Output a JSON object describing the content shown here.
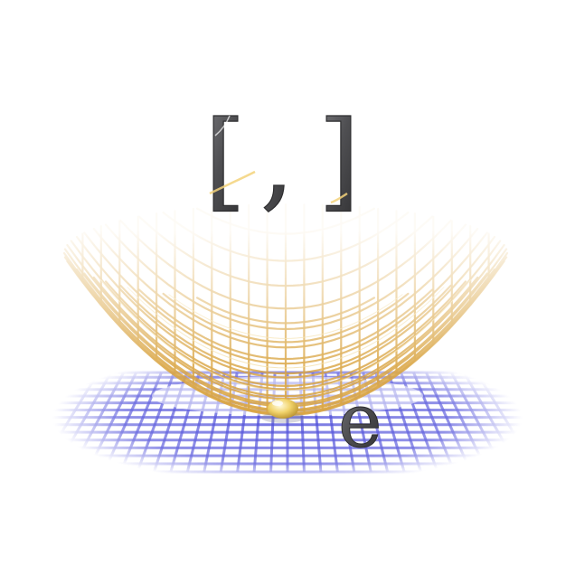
{
  "notation": {
    "open_bracket": "[",
    "comma": ",",
    "close_bracket": "]",
    "electron_label": "e"
  },
  "colors": {
    "glyph_fill": "#58585a",
    "glyph_edge": "#2e2e30",
    "glyph_shine": "#e8c25a",
    "bowl_wire": "#d9a441",
    "bowl_wire_light": "#f3dca0",
    "grid_lines": "#4a4ad8",
    "grid_glow": "#ffffff",
    "ball": "#f1d36b"
  },
  "icons": {
    "bowl": "potential-well-mesh",
    "plane": "grid-plane",
    "particle": "ball"
  }
}
